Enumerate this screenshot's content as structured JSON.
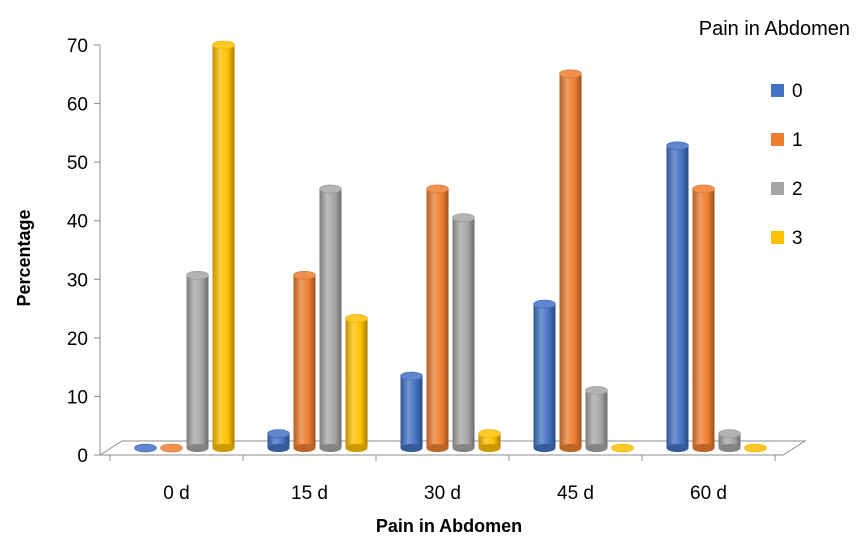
{
  "chart_data": {
    "type": "bar",
    "title": "",
    "legend_title": "Pain in Abdomen",
    "xlabel": "Pain in Abdomen",
    "ylabel": "Percentage",
    "ylim": [
      0,
      70
    ],
    "yticks": [
      0,
      10,
      20,
      30,
      40,
      50,
      60,
      70
    ],
    "categories": [
      "0 d",
      "15 d",
      "30 d",
      "45 d",
      "60 d"
    ],
    "series": [
      {
        "name": "0",
        "color": "#4472C4",
        "values": [
          0,
          2.5,
          12.5,
          25,
          52.5
        ]
      },
      {
        "name": "1",
        "color": "#ED7D31",
        "values": [
          0,
          30,
          45,
          65,
          45
        ]
      },
      {
        "name": "2",
        "color": "#A5A5A5",
        "values": [
          30,
          45,
          40,
          10,
          2.5
        ]
      },
      {
        "name": "3",
        "color": "#FFC000",
        "values": [
          70,
          22.5,
          2.5,
          0,
          0
        ]
      }
    ],
    "legend_position": "right",
    "grid": false
  }
}
